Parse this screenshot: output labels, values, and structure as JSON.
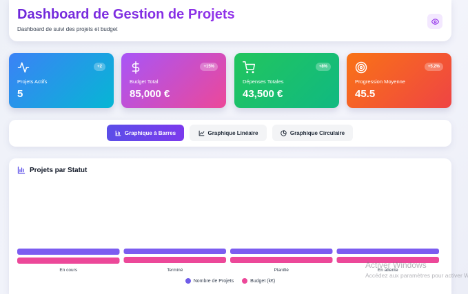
{
  "header": {
    "title": "Dashboard de Gestion de Projets",
    "subtitle": "Dashboard de suivi des projets et budget",
    "view_icon": "eye-icon"
  },
  "cards": [
    {
      "label": "Projets Actifs",
      "value": "5",
      "badge": "+2",
      "icon": "activity-icon",
      "gradient": [
        "#3b82f6",
        "#06b6d4"
      ]
    },
    {
      "label": "Budget Total",
      "value": "85,000 €",
      "badge": "+15%",
      "icon": "dollar-icon",
      "gradient": [
        "#a855f7",
        "#ec4899"
      ]
    },
    {
      "label": "Dépenses Totales",
      "value": "43,500 €",
      "badge": "+8%",
      "icon": "cart-icon",
      "gradient": [
        "#22c55e",
        "#10b981"
      ]
    },
    {
      "label": "Progression Moyenne",
      "value": "45.5",
      "badge": "+5.2%",
      "icon": "target-icon",
      "gradient": [
        "#f97316",
        "#ef4444"
      ]
    }
  ],
  "tabs": [
    {
      "label": "Graphique à Barres",
      "icon": "bar-chart-icon",
      "active": true
    },
    {
      "label": "Graphique Linéaire",
      "icon": "line-chart-icon",
      "active": false
    },
    {
      "label": "Graphique Circulaire",
      "icon": "pie-chart-icon",
      "active": false
    }
  ],
  "panel": {
    "title": "Projets par Statut",
    "icon": "bar-chart-icon"
  },
  "chart_data": {
    "type": "bar",
    "categories": [
      "En cours",
      "Terminé",
      "Planifié",
      "En attente"
    ],
    "series": [
      {
        "name": "Nombre de Projets",
        "values": [
          2,
          1,
          1,
          1
        ],
        "color": "#7c5cf0"
      },
      {
        "name": "Budget (k€)",
        "values": [
          1,
          1,
          1,
          1
        ],
        "color": "#ec4899"
      }
    ],
    "legend": "bottom"
  },
  "watermark": {
    "line1": "Activer Windows",
    "line2": "Accédez aux paramètres pour activer Windows."
  }
}
